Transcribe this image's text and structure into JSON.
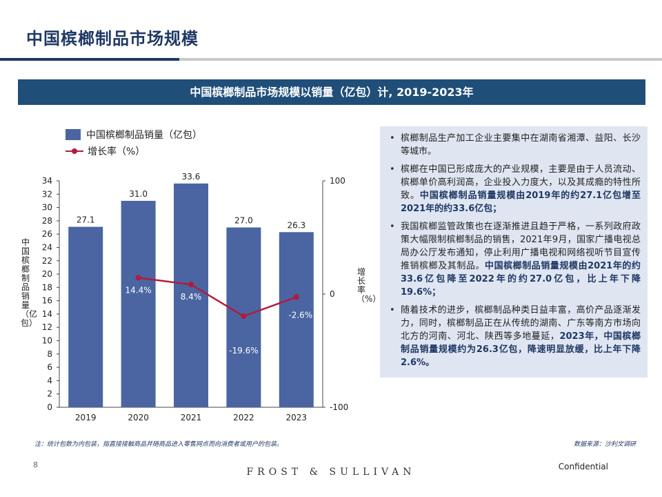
{
  "page": {
    "title": "中国槟榔制品市场规模",
    "banner": "中国槟榔制品市场规模以销量（亿包）计, 2019-2023年"
  },
  "chart_data": {
    "type": "bar",
    "categories": [
      "2019",
      "2020",
      "2021",
      "2022",
      "2023"
    ],
    "series": [
      {
        "name": "中国槟榔制品销量（亿包）",
        "type": "bar",
        "axis": "left",
        "values": [
          27.1,
          31.0,
          33.6,
          27.0,
          26.3
        ],
        "labels": [
          "27.1",
          "31.0",
          "33.6",
          "27.0",
          "26.3"
        ],
        "color": "#4a65a1"
      },
      {
        "name": "增长率（%）",
        "type": "line",
        "axis": "right",
        "x": [
          "2020",
          "2021",
          "2022",
          "2023"
        ],
        "values": [
          14.4,
          8.4,
          -19.6,
          -2.6
        ],
        "labels": [
          "14.4%",
          "8.4%",
          "-19.6%",
          "-2.6%"
        ],
        "color": "#b01c3c"
      }
    ],
    "ylabel": "中国槟榔制品销量（亿包）",
    "y2label": "增长率（%）",
    "ylim": [
      0,
      34
    ],
    "yticks": [
      "0",
      "2",
      "4",
      "6",
      "8",
      "10",
      "12",
      "14",
      "16",
      "18",
      "20",
      "22",
      "24",
      "26",
      "28",
      "30",
      "32",
      "34"
    ],
    "y2lim": [
      -100,
      100
    ],
    "y2ticks": [
      "-100",
      "0",
      "100"
    ],
    "grid": false,
    "legend": "top-left"
  },
  "notes": [
    {
      "text": "槟榔制品生产加工企业主要集中在湖南省湘潭、益阳、长沙等城市。",
      "bold": ""
    },
    {
      "text": "槟榔在中国已形成庞大的产业规模，主要是由于人员流动、槟榔单价高利润高，企业投入力度大，以及其成瘾的特性所致。",
      "bold": "中国槟榔制品销量规模由2019年的约27.1亿包增至2021年的约33.6亿包；"
    },
    {
      "text": "我国槟榔监管政策也在逐渐推进且趋于严格，一系列政府政策大幅限制槟榔制品的销售，2021年9月，国家广播电视总局办公厅发布通知，停止利用广播电视和网络视听节目宣传推销槟榔及其制品。",
      "bold": "中国槟榔制品销量规模由2021年的约33.6亿包降至2022年的约27.0亿包，比上年下降19.6%；"
    },
    {
      "text": "随着技术的进步，槟榔制品种类日益丰富，高价产品逐渐发力，同时，槟榔制品正在从传统的湖南、广东等南方市场向北方的河南、河北、陕西等多地蔓延，",
      "bold": "2023年，中国槟榔制品销量规模约为26.3亿包，降速明显放缓，比上年下降2.6%。"
    }
  ],
  "footer": {
    "note": "注：统计包数为内包装，指直接接触商品并随商品进入零售网点而向消费者或用户的包装。",
    "source": "数据来源：沙利文调研",
    "page_number": "8",
    "brand": "FROST & SULLIVAN",
    "confidential": "Confidential"
  },
  "colors": {
    "navy": "#1f3864",
    "banner": "#1f4e79",
    "bar": "#4a65a1",
    "line": "#b01c3c",
    "note_bg": "#dfe6f2"
  }
}
